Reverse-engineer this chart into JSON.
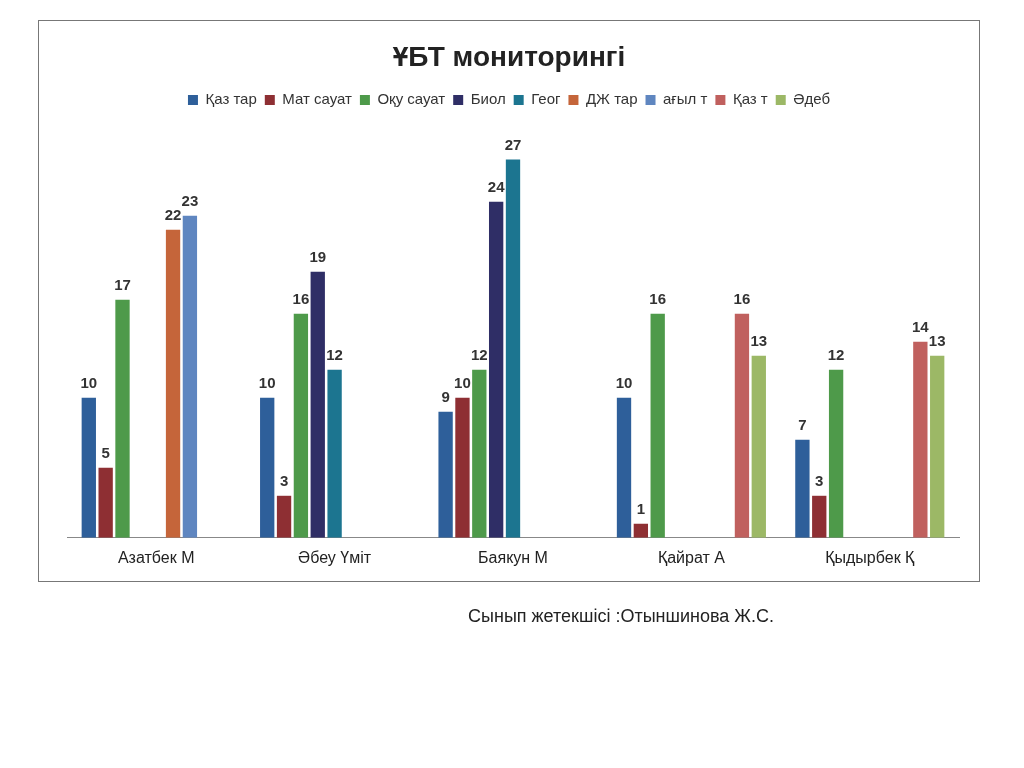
{
  "chart_data": {
    "type": "bar",
    "title": "ҰБТ мониторингі",
    "categories": [
      "Азатбек М",
      "Әбеу Үміт",
      "Баякун М",
      "Қайрат А",
      "Қыдырбек Қ"
    ],
    "series": [
      {
        "name": "Қаз тар",
        "color": "#2e5f9a",
        "values": [
          10,
          10,
          9,
          10,
          7
        ]
      },
      {
        "name": "Мат сауат",
        "color": "#8e2f33",
        "values": [
          5,
          3,
          10,
          1,
          3
        ]
      },
      {
        "name": "Оқу сауат",
        "color": "#4e9a4a",
        "values": [
          17,
          16,
          12,
          16,
          12
        ]
      },
      {
        "name": "Биол",
        "color": "#2f2e66",
        "values": [
          null,
          19,
          24,
          null,
          null
        ]
      },
      {
        "name": "Геог",
        "color": "#1c7590",
        "values": [
          null,
          12,
          27,
          null,
          null
        ]
      },
      {
        "name": "ДЖ тар",
        "color": "#c5653a",
        "values": [
          22,
          null,
          null,
          null,
          null
        ]
      },
      {
        "name": "ағыл т",
        "color": "#5f86c0",
        "values": [
          23,
          null,
          null,
          null,
          null
        ]
      },
      {
        "name": "Қаз т",
        "color": "#c0605e",
        "values": [
          null,
          null,
          null,
          16,
          14
        ]
      },
      {
        "name": "Әдеб",
        "color": "#9cb866",
        "values": [
          null,
          null,
          null,
          13,
          13
        ]
      }
    ],
    "relative": false,
    "data_labels": true,
    "grid": false,
    "legend": "top",
    "annotations": [
      "Сынып жетекшісі :Отыншинова Ж.С."
    ]
  }
}
